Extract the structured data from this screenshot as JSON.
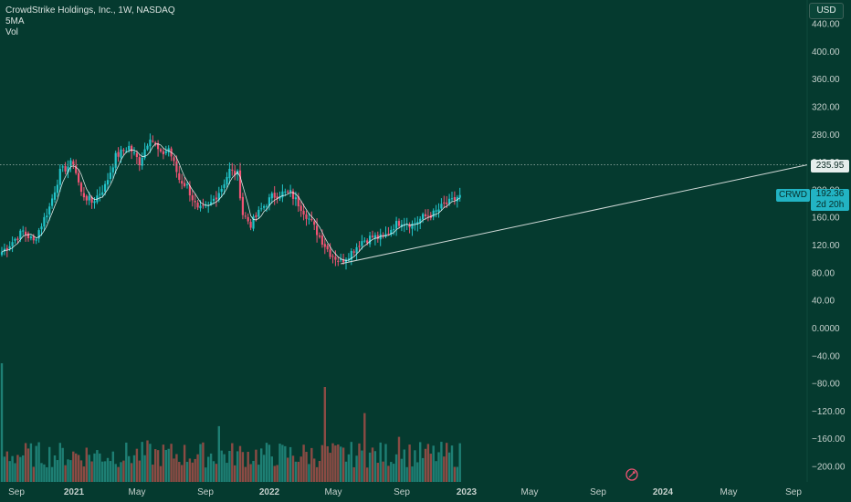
{
  "header": {
    "title": "CrowdStrike Holdings, Inc., 1W, NASDAQ",
    "ma_label": "5MA",
    "vol_label": "Vol"
  },
  "currency_button": "USD",
  "price_marker": {
    "label": "235.95",
    "value": 235.95
  },
  "last_price": {
    "symbol": "CRWD",
    "price": "192.36",
    "countdown": "2d 20h"
  },
  "colors": {
    "background": "#053a2f",
    "up": "#26a69a",
    "up_body": "#22c3c9",
    "down": "#ef5373",
    "vol_up": "#1e7f74",
    "vol_down": "#8b4b44",
    "ma": "#ffffff",
    "trendline": "#cfd8d6"
  },
  "chart_data": {
    "type": "candlestick",
    "title": "CrowdStrike Holdings, Inc., 1W, NASDAQ",
    "y_axis": {
      "ticks": [
        "440.00",
        "400.00",
        "360.00",
        "320.00",
        "280.00",
        "240.00",
        "200.00",
        "160.00",
        "120.00",
        "80.00",
        "40.00",
        "0.0000",
        "−40.00",
        "−80.00",
        "−120.00",
        "−160.00",
        "−200.00"
      ],
      "range": [
        -215,
        460
      ]
    },
    "x_axis": {
      "ticks": [
        {
          "label": "Sep",
          "bold": false
        },
        {
          "label": "2021",
          "bold": true
        },
        {
          "label": "May",
          "bold": false
        },
        {
          "label": "Sep",
          "bold": false
        },
        {
          "label": "2022",
          "bold": true
        },
        {
          "label": "May",
          "bold": false
        },
        {
          "label": "Sep",
          "bold": false
        },
        {
          "label": "2023",
          "bold": true
        },
        {
          "label": "May",
          "bold": false
        },
        {
          "label": "Sep",
          "bold": false
        },
        {
          "label": "2024",
          "bold": true
        },
        {
          "label": "May",
          "bold": false
        },
        {
          "label": "Sep",
          "bold": false
        }
      ]
    },
    "weekly_close_anchors": [
      {
        "week": 0,
        "close": 110
      },
      {
        "week": 8,
        "close": 140
      },
      {
        "week": 12,
        "close": 125
      },
      {
        "week": 18,
        "close": 175
      },
      {
        "week": 22,
        "close": 225
      },
      {
        "week": 27,
        "close": 240
      },
      {
        "week": 30,
        "close": 195
      },
      {
        "week": 34,
        "close": 182
      },
      {
        "week": 39,
        "close": 205
      },
      {
        "week": 43,
        "close": 248
      },
      {
        "week": 48,
        "close": 262
      },
      {
        "week": 52,
        "close": 240
      },
      {
        "week": 56,
        "close": 278
      },
      {
        "week": 60,
        "close": 250
      },
      {
        "week": 63,
        "close": 260
      },
      {
        "week": 67,
        "close": 215
      },
      {
        "week": 70,
        "close": 205
      },
      {
        "week": 74,
        "close": 170
      },
      {
        "week": 78,
        "close": 175
      },
      {
        "week": 83,
        "close": 203
      },
      {
        "week": 86,
        "close": 228
      },
      {
        "week": 89,
        "close": 222
      },
      {
        "week": 91,
        "close": 165
      },
      {
        "week": 94,
        "close": 150
      },
      {
        "week": 98,
        "close": 172
      },
      {
        "week": 102,
        "close": 190
      },
      {
        "week": 106,
        "close": 195
      },
      {
        "week": 109,
        "close": 195
      },
      {
        "week": 113,
        "close": 175
      },
      {
        "week": 117,
        "close": 152
      },
      {
        "week": 120,
        "close": 132
      },
      {
        "week": 124,
        "close": 108
      },
      {
        "week": 128,
        "close": 96
      },
      {
        "week": 132,
        "close": 110
      },
      {
        "week": 136,
        "close": 126
      },
      {
        "week": 140,
        "close": 132
      },
      {
        "week": 144,
        "close": 130
      },
      {
        "week": 148,
        "close": 148
      },
      {
        "week": 151,
        "close": 155
      },
      {
        "week": 155,
        "close": 150
      },
      {
        "week": 159,
        "close": 160
      },
      {
        "week": 163,
        "close": 165
      },
      {
        "week": 167,
        "close": 178
      },
      {
        "week": 170,
        "close": 183
      },
      {
        "week": 173,
        "close": 192.36
      }
    ],
    "trendline": {
      "from": {
        "week": 128,
        "value": 93
      },
      "to": {
        "week": "edge",
        "value": 235.95
      }
    },
    "horizontal_line": {
      "value": 235.95,
      "style": "dotted"
    },
    "volume_spikes": [
      {
        "week": 0,
        "relative": 1.0,
        "up": true
      },
      {
        "week": 122,
        "relative": 0.8,
        "up": false
      },
      {
        "week": 137,
        "relative": 0.58,
        "up": false
      },
      {
        "week": 150,
        "relative": 0.38,
        "up": false
      },
      {
        "week": 82,
        "relative": 0.47,
        "up": true
      },
      {
        "week": 55,
        "relative": 0.35,
        "up": false
      }
    ]
  }
}
